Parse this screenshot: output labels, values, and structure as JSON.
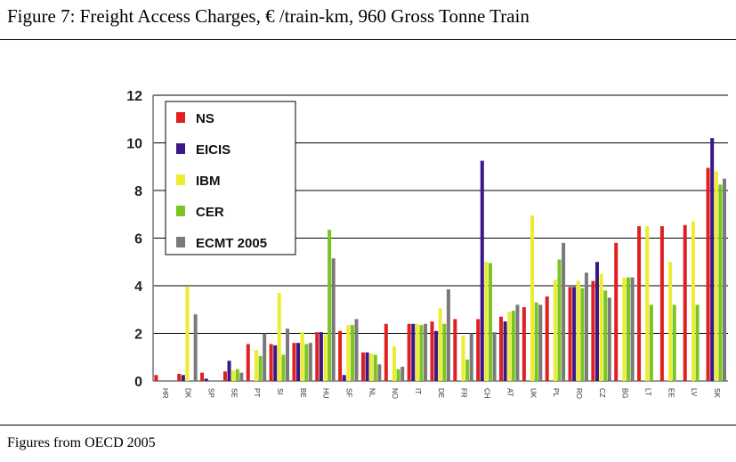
{
  "caption": "Figure 7: Freight Access Charges, € /train-km, 960 Gross Tonne Train",
  "source": "Figures from OECD 2005",
  "chart_data": {
    "type": "bar",
    "title": "",
    "xlabel": "",
    "ylabel": "",
    "ylim": [
      0,
      12
    ],
    "yticks": [
      0,
      2,
      4,
      6,
      8,
      10,
      12
    ],
    "grid": true,
    "legend_position": "top-left",
    "categories": [
      "HR",
      "DK",
      "SP",
      "SE",
      "PT",
      "SI",
      "BE",
      "HU",
      "SF",
      "NL",
      "NO",
      "IT",
      "DE",
      "FR",
      "CH",
      "AT",
      "UK",
      "PL",
      "RO",
      "CZ",
      "BG",
      "LT",
      "EE",
      "LV",
      "SK"
    ],
    "series": [
      {
        "name": "NS",
        "color": "#e02020",
        "values": [
          0.25,
          0.3,
          0.35,
          0.4,
          1.55,
          1.55,
          1.6,
          2.05,
          2.1,
          1.2,
          2.4,
          2.4,
          2.5,
          2.6,
          2.6,
          2.7,
          3.1,
          3.55,
          3.95,
          4.2,
          5.8,
          6.5,
          6.5,
          6.55,
          8.95
        ]
      },
      {
        "name": "EICIS",
        "color": "#3a1888",
        "values": [
          null,
          0.25,
          0.1,
          0.85,
          null,
          1.5,
          1.6,
          2.05,
          0.25,
          1.2,
          null,
          2.4,
          2.1,
          null,
          9.25,
          2.5,
          null,
          null,
          3.95,
          5.0,
          null,
          null,
          null,
          null,
          10.2
        ]
      },
      {
        "name": "IBM",
        "color": "#ecec30",
        "values": [
          null,
          3.95,
          null,
          0.45,
          1.3,
          3.7,
          2.05,
          1.95,
          2.35,
          1.15,
          1.45,
          2.4,
          3.05,
          1.9,
          5.0,
          2.9,
          6.95,
          4.25,
          4.2,
          4.5,
          4.35,
          6.5,
          5.0,
          6.7,
          8.8
        ]
      },
      {
        "name": "CER",
        "color": "#7ac520",
        "values": [
          null,
          null,
          null,
          0.5,
          1.05,
          1.1,
          1.55,
          6.35,
          2.35,
          1.1,
          0.5,
          2.35,
          2.4,
          0.9,
          4.95,
          2.95,
          3.3,
          5.1,
          3.9,
          3.8,
          4.35,
          3.2,
          3.2,
          3.2,
          8.25
        ]
      },
      {
        "name": "ECMT  2005",
        "color": "#7a7a7a",
        "values": [
          null,
          2.8,
          null,
          0.35,
          2.0,
          2.2,
          1.6,
          5.15,
          2.6,
          0.7,
          0.6,
          2.4,
          3.85,
          2.0,
          2.05,
          3.2,
          3.2,
          5.8,
          4.55,
          3.5,
          4.35,
          null,
          null,
          null,
          8.5
        ]
      }
    ]
  }
}
